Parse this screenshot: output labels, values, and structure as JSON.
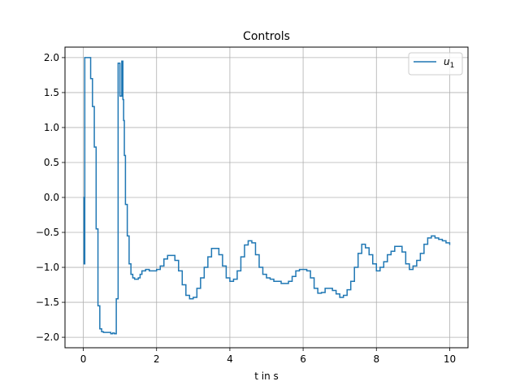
{
  "chart_data": {
    "type": "line",
    "drawstyle": "steps-post",
    "title": "Controls",
    "xlabel": "t in s",
    "ylabel": "",
    "xlim": [
      -0.5,
      10.5
    ],
    "ylim": [
      -2.15,
      2.15
    ],
    "xticks": [
      0,
      2,
      4,
      6,
      8,
      10
    ],
    "xtick_labels": [
      "0",
      "2",
      "4",
      "6",
      "8",
      "10"
    ],
    "yticks": [
      2.0,
      1.5,
      1.0,
      0.5,
      0.0,
      -0.5,
      -1.0,
      -1.5,
      -2.0
    ],
    "ytick_labels": [
      "2.0",
      "1.5",
      "1.0",
      "0.5",
      "0.0",
      "−0.5",
      "−1.0",
      "−1.5",
      "−2.0"
    ],
    "grid": true,
    "legend_position": "top-right",
    "series": [
      {
        "name": "u",
        "name_subscript": "1",
        "color": "#1f77b4",
        "x": [
          0.0,
          0.02,
          0.04,
          0.06,
          0.1,
          0.15,
          0.2,
          0.25,
          0.3,
          0.35,
          0.4,
          0.45,
          0.5,
          0.55,
          0.6,
          0.65,
          0.7,
          0.75,
          0.8,
          0.85,
          0.9,
          0.95,
          1.0,
          1.05,
          1.08,
          1.1,
          1.12,
          1.15,
          1.2,
          1.25,
          1.3,
          1.35,
          1.4,
          1.45,
          1.5,
          1.55,
          1.6,
          1.7,
          1.8,
          1.9,
          2.0,
          2.1,
          2.2,
          2.3,
          2.4,
          2.5,
          2.6,
          2.7,
          2.8,
          2.9,
          3.0,
          3.1,
          3.2,
          3.3,
          3.4,
          3.5,
          3.6,
          3.7,
          3.8,
          3.9,
          4.0,
          4.1,
          4.2,
          4.3,
          4.4,
          4.5,
          4.6,
          4.7,
          4.8,
          4.9,
          5.0,
          5.1,
          5.2,
          5.3,
          5.4,
          5.5,
          5.6,
          5.7,
          5.8,
          5.9,
          6.0,
          6.1,
          6.2,
          6.3,
          6.4,
          6.5,
          6.6,
          6.7,
          6.8,
          6.9,
          7.0,
          7.1,
          7.2,
          7.3,
          7.4,
          7.5,
          7.6,
          7.7,
          7.8,
          7.9,
          8.0,
          8.1,
          8.2,
          8.3,
          8.4,
          8.5,
          8.6,
          8.7,
          8.8,
          8.9,
          9.0,
          9.1,
          9.2,
          9.3,
          9.4,
          9.5,
          9.6,
          9.7,
          9.8,
          9.9,
          10.0
        ],
        "y": [
          0.0,
          -0.95,
          2.0,
          2.0,
          2.0,
          2.0,
          1.7,
          1.3,
          0.72,
          -0.45,
          -1.55,
          -1.88,
          -1.92,
          -1.93,
          -1.93,
          -1.93,
          -1.93,
          -1.95,
          -1.94,
          -1.95,
          -1.45,
          1.92,
          1.45,
          1.95,
          1.4,
          1.1,
          0.6,
          -0.1,
          -0.55,
          -0.95,
          -1.1,
          -1.15,
          -1.17,
          -1.17,
          -1.15,
          -1.1,
          -1.05,
          -1.03,
          -1.05,
          -1.05,
          -1.03,
          -0.98,
          -0.88,
          -0.83,
          -0.83,
          -0.9,
          -1.05,
          -1.25,
          -1.4,
          -1.45,
          -1.43,
          -1.3,
          -1.15,
          -1.0,
          -0.85,
          -0.73,
          -0.73,
          -0.82,
          -0.98,
          -1.15,
          -1.2,
          -1.17,
          -1.05,
          -0.85,
          -0.68,
          -0.62,
          -0.65,
          -0.82,
          -1.0,
          -1.1,
          -1.15,
          -1.17,
          -1.2,
          -1.2,
          -1.23,
          -1.23,
          -1.2,
          -1.13,
          -1.05,
          -1.03,
          -1.03,
          -1.05,
          -1.15,
          -1.3,
          -1.37,
          -1.36,
          -1.3,
          -1.3,
          -1.33,
          -1.38,
          -1.43,
          -1.4,
          -1.32,
          -1.2,
          -1.0,
          -0.8,
          -0.67,
          -0.72,
          -0.82,
          -0.95,
          -1.05,
          -1.0,
          -0.92,
          -0.82,
          -0.77,
          -0.7,
          -0.7,
          -0.78,
          -0.95,
          -1.03,
          -0.98,
          -0.9,
          -0.8,
          -0.67,
          -0.58,
          -0.55,
          -0.58,
          -0.6,
          -0.62,
          -0.65,
          -0.68
        ]
      }
    ]
  }
}
